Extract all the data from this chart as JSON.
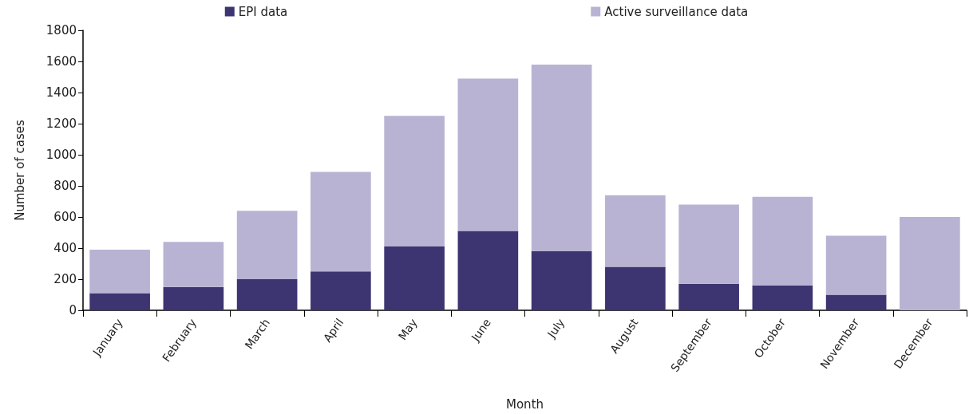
{
  "chart_data": {
    "type": "bar",
    "stacked": true,
    "xlabel": "Month",
    "ylabel": "Number of cases",
    "categories": [
      "January",
      "February",
      "March",
      "April",
      "May",
      "June",
      "July",
      "August",
      "September",
      "October",
      "November",
      "December"
    ],
    "series": [
      {
        "name": "EPI data",
        "color": "#3d3472",
        "values": [
          110,
          150,
          200,
          250,
          410,
          510,
          380,
          280,
          170,
          160,
          100,
          0
        ]
      },
      {
        "name": "Active surveillance data",
        "color": "#b8b3d3",
        "values": [
          280,
          290,
          440,
          640,
          840,
          980,
          1200,
          460,
          510,
          570,
          380,
          600
        ]
      }
    ],
    "ylim": [
      0,
      1800
    ],
    "yticks": [
      0,
      200,
      400,
      600,
      800,
      1000,
      1200,
      1400,
      1600,
      1800
    ],
    "grid": false,
    "legend": "top"
  }
}
